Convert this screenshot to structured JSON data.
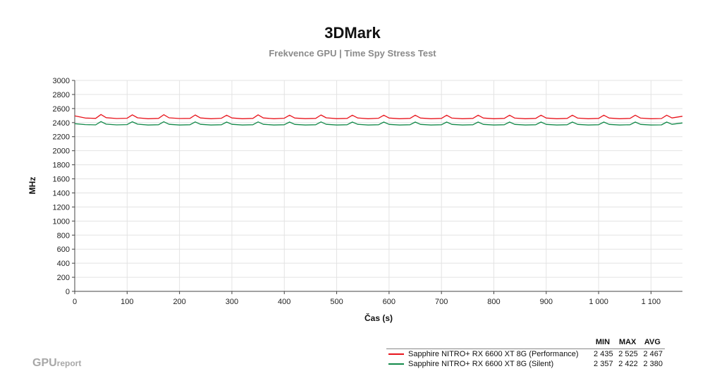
{
  "chart_data": {
    "type": "line",
    "title": "3DMark",
    "subtitle": "Frekvence GPU | Time Spy Stress Test",
    "xlabel": "Čas (s)",
    "ylabel": "MHz",
    "xlim": [
      0,
      1160
    ],
    "ylim": [
      0,
      3000
    ],
    "x_ticks": [
      0,
      100,
      200,
      300,
      400,
      500,
      600,
      700,
      800,
      900,
      1000,
      1100
    ],
    "x_tick_labels": [
      "0",
      "100",
      "200",
      "300",
      "400",
      "500",
      "600",
      "700",
      "800",
      "900",
      "1 000",
      "1 100"
    ],
    "y_ticks": [
      0,
      200,
      400,
      600,
      800,
      1000,
      1200,
      1400,
      1600,
      1800,
      2000,
      2200,
      2400,
      2600,
      2800,
      3000
    ],
    "grid": true,
    "legend_columns": [
      "MIN",
      "MAX",
      "AVG"
    ],
    "series": [
      {
        "name": "Sapphire NITRO+ RX 6600 XT 8G (Performance)",
        "color": "#e8141c",
        "min": "2 435",
        "max": "2 525",
        "avg": "2 467",
        "x": [
          0,
          20,
          40,
          50,
          60,
          80,
          100,
          110,
          120,
          140,
          160,
          170,
          180,
          200,
          220,
          230,
          240,
          260,
          280,
          290,
          300,
          320,
          340,
          350,
          360,
          380,
          400,
          410,
          420,
          440,
          460,
          470,
          480,
          500,
          520,
          530,
          540,
          560,
          580,
          590,
          600,
          620,
          640,
          650,
          660,
          680,
          700,
          710,
          720,
          740,
          760,
          770,
          780,
          800,
          820,
          830,
          840,
          860,
          880,
          890,
          900,
          920,
          940,
          950,
          960,
          980,
          1000,
          1010,
          1020,
          1040,
          1060,
          1070,
          1080,
          1100,
          1120,
          1130,
          1140,
          1160
        ],
        "values": [
          2495,
          2465,
          2460,
          2515,
          2470,
          2458,
          2462,
          2510,
          2468,
          2455,
          2460,
          2512,
          2468,
          2458,
          2460,
          2508,
          2466,
          2455,
          2462,
          2505,
          2466,
          2455,
          2460,
          2510,
          2466,
          2455,
          2462,
          2505,
          2465,
          2456,
          2460,
          2508,
          2468,
          2456,
          2460,
          2505,
          2466,
          2455,
          2462,
          2505,
          2465,
          2455,
          2460,
          2505,
          2465,
          2455,
          2460,
          2505,
          2464,
          2455,
          2460,
          2505,
          2465,
          2455,
          2460,
          2505,
          2464,
          2455,
          2460,
          2505,
          2465,
          2455,
          2460,
          2505,
          2464,
          2455,
          2460,
          2505,
          2465,
          2455,
          2460,
          2505,
          2464,
          2455,
          2458,
          2505,
          2466,
          2490
        ]
      },
      {
        "name": "Sapphire NITRO+ RX 6600 XT 8G (Silent)",
        "color": "#138a4a",
        "min": "2 357",
        "max": "2 422",
        "avg": "2 380",
        "x": [
          0,
          20,
          40,
          50,
          60,
          80,
          100,
          110,
          120,
          140,
          160,
          170,
          180,
          200,
          220,
          230,
          240,
          260,
          280,
          290,
          300,
          320,
          340,
          350,
          360,
          380,
          400,
          410,
          420,
          440,
          460,
          470,
          480,
          500,
          520,
          530,
          540,
          560,
          580,
          590,
          600,
          620,
          640,
          650,
          660,
          680,
          700,
          710,
          720,
          740,
          760,
          770,
          780,
          800,
          820,
          830,
          840,
          860,
          880,
          890,
          900,
          920,
          940,
          950,
          960,
          980,
          1000,
          1010,
          1020,
          1040,
          1060,
          1070,
          1080,
          1100,
          1120,
          1130,
          1140,
          1160
        ],
        "values": [
          2385,
          2372,
          2368,
          2415,
          2378,
          2368,
          2372,
          2412,
          2378,
          2366,
          2370,
          2412,
          2376,
          2366,
          2370,
          2410,
          2376,
          2366,
          2370,
          2408,
          2376,
          2366,
          2370,
          2410,
          2376,
          2366,
          2370,
          2408,
          2375,
          2366,
          2370,
          2410,
          2376,
          2366,
          2370,
          2408,
          2376,
          2366,
          2370,
          2408,
          2375,
          2366,
          2370,
          2408,
          2375,
          2366,
          2370,
          2408,
          2375,
          2366,
          2370,
          2408,
          2375,
          2366,
          2370,
          2408,
          2375,
          2366,
          2370,
          2408,
          2375,
          2366,
          2370,
          2408,
          2375,
          2366,
          2370,
          2408,
          2375,
          2366,
          2370,
          2408,
          2375,
          2366,
          2368,
          2408,
          2376,
          2395
        ]
      }
    ]
  },
  "watermark": {
    "main": "GPU",
    "small": "report"
  }
}
